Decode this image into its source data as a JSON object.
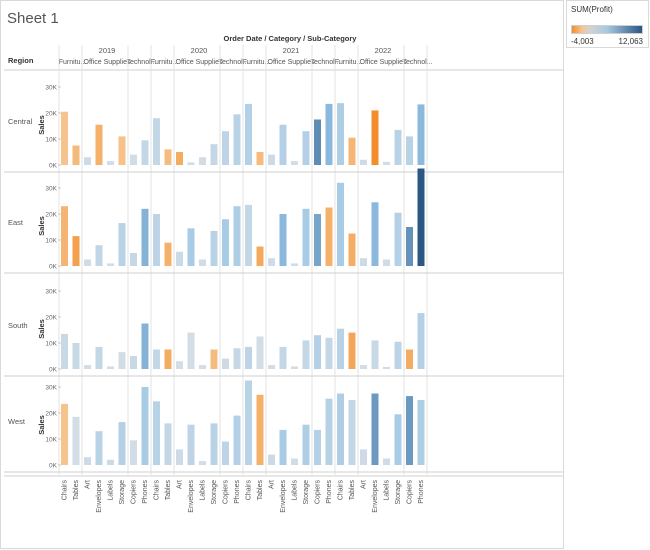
{
  "sheet": {
    "title": "Sheet 1"
  },
  "legend": {
    "title": "SUM(Profit)",
    "min_label": "-4,003",
    "max_label": "12,063",
    "min": -4003,
    "max": 12063,
    "colors": {
      "negative": "#f28e2b",
      "neutral": "#d3d3d3",
      "positive": "#2a5783"
    }
  },
  "chart_data": {
    "type": "bar",
    "title": "",
    "column_header_title": "Order Date / Category / Sub-Category",
    "row_header_title": "Region",
    "ylabel": "Sales",
    "ylim": [
      0,
      36000
    ],
    "yticks": [
      {
        "value": 0,
        "label": "0K"
      },
      {
        "value": 10000,
        "label": "10K"
      },
      {
        "value": 20000,
        "label": "20K"
      },
      {
        "value": 30000,
        "label": "30K"
      }
    ],
    "grid": false,
    "legend_position": "top-right",
    "years": [
      "2019",
      "2020",
      "2021",
      "2022"
    ],
    "categories": [
      {
        "name": "Furniture",
        "header": "Furnitu...",
        "subcategories": [
          "Chairs",
          "Tables"
        ]
      },
      {
        "name": "Office Supplies",
        "header": "Office Supplies",
        "subcategories": [
          "Art",
          "Envelopes",
          "Labels",
          "Storage"
        ]
      },
      {
        "name": "Technology",
        "header": "Technol...",
        "subcategories": [
          "Copiers",
          "Phones"
        ]
      }
    ],
    "regions": [
      "Central",
      "East",
      "South",
      "West"
    ],
    "sales": {
      "Central": {
        "2019": [
          20500,
          7500,
          3000,
          15500,
          1500,
          11000,
          4000,
          9500
        ],
        "2020": [
          18000,
          6000,
          5000,
          1000,
          3000,
          8000,
          13000,
          19500
        ],
        "2021": [
          23500,
          5000,
          4000,
          15500,
          1500,
          13000,
          17500,
          23500
        ],
        "2022": [
          23800,
          10500,
          2000,
          21000,
          1200,
          13500,
          11000,
          23300
        ]
      },
      "East": {
        "2019": [
          23000,
          11500,
          2500,
          8000,
          1000,
          16500,
          5000,
          22000
        ],
        "2020": [
          20000,
          9000,
          5500,
          14500,
          2500,
          13500,
          18000,
          23000
        ],
        "2021": [
          23500,
          7500,
          3000,
          20000,
          1000,
          22000,
          20000,
          22500
        ],
        "2022": [
          32000,
          12500,
          3000,
          24500,
          2500,
          20500,
          15000,
          37500
        ]
      },
      "South": {
        "2019": [
          13500,
          10000,
          1500,
          8500,
          1000,
          6500,
          5000,
          17500
        ],
        "2020": [
          7500,
          7500,
          3000,
          14000,
          1500,
          7500,
          4000,
          8000
        ],
        "2021": [
          8500,
          12500,
          1500,
          8500,
          1000,
          11000,
          13000,
          12000
        ],
        "2022": [
          15500,
          14000,
          1500,
          11000,
          800,
          10500,
          7500,
          21500
        ]
      },
      "West": {
        "2019": [
          23500,
          18500,
          3000,
          13000,
          2000,
          16500,
          9500,
          30000
        ],
        "2020": [
          24500,
          16000,
          6000,
          15500,
          1500,
          16000,
          9000,
          19000
        ],
        "2021": [
          32500,
          27000,
          4000,
          13500,
          2500,
          15500,
          13500,
          25500
        ],
        "2022": [
          27500,
          25000,
          6000,
          27500,
          2500,
          19500,
          26500,
          25000
        ]
      }
    },
    "profit": {
      "Central": {
        "2019": [
          -50,
          -800,
          500,
          -1500,
          300,
          -200,
          300,
          1500
        ],
        "2020": [
          1500,
          -600,
          -1800,
          300,
          200,
          1500,
          2000,
          2500
        ],
        "2021": [
          3000,
          -700,
          600,
          3000,
          200,
          3000,
          8000,
          4500
        ],
        "2022": [
          3500,
          -1100,
          500,
          -4003,
          300,
          2500,
          2500,
          4500
        ]
      },
      "East": {
        "2019": [
          -1200,
          -2600,
          300,
          1700,
          200,
          2500,
          1200,
          5000
        ],
        "2020": [
          2000,
          -1500,
          800,
          4000,
          300,
          2500,
          4000,
          3500
        ],
        "2021": [
          1500,
          -2000,
          400,
          4500,
          200,
          4000,
          6000,
          -1500
        ],
        "2022": [
          4000,
          -1700,
          500,
          4500,
          400,
          3000,
          7500,
          12063
        ]
      },
      "South": {
        "2019": [
          1000,
          1000,
          150,
          1500,
          200,
          200,
          1000,
          5000
        ],
        "2020": [
          1500,
          -1800,
          100,
          100,
          200,
          -600,
          600,
          1200
        ],
        "2021": [
          2000,
          100,
          200,
          1500,
          200,
          1500,
          3000,
          1500
        ],
        "2022": [
          2500,
          -2200,
          200,
          1000,
          200,
          2000,
          -1800,
          3000
        ]
      },
      "West": {
        "2019": [
          -100,
          100,
          500,
          2500,
          500,
          3000,
          100,
          4000
        ],
        "2020": [
          2500,
          1500,
          500,
          2000,
          300,
          2500,
          2000,
          3000
        ],
        "2021": [
          2500,
          -1500,
          600,
          4000,
          300,
          3500,
          3000,
          2800
        ],
        "2022": [
          3500,
          1500,
          500,
          7000,
          400,
          4000,
          7000,
          3500
        ]
      }
    }
  }
}
